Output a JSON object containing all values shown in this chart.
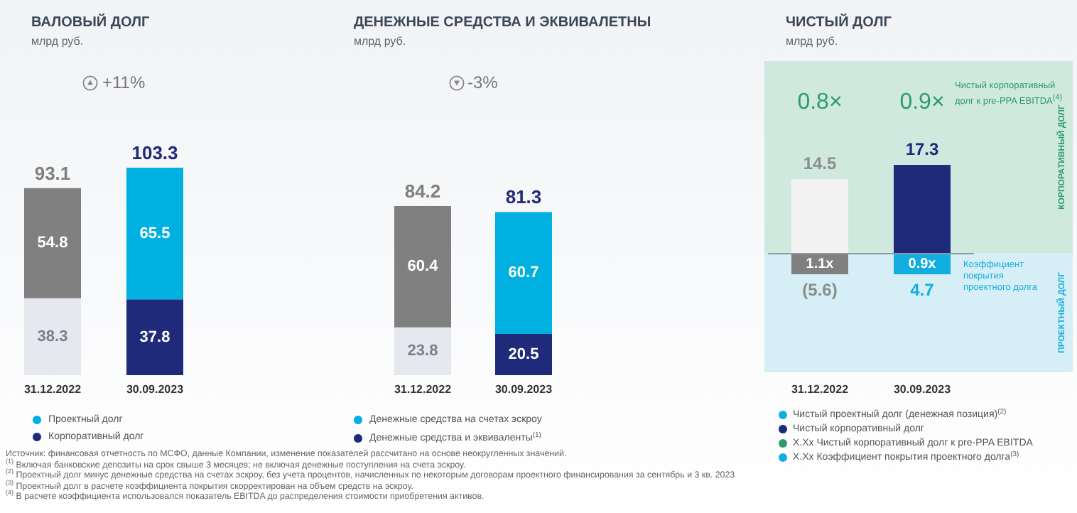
{
  "chart_data": [
    {
      "type": "bar",
      "title": "ВАЛОВЫЙ ДОЛГ",
      "subtitle": "млрд руб.",
      "categories": [
        "31.12.2022",
        "30.09.2023"
      ],
      "stacked": true,
      "data_labels": true,
      "totals": [
        "93.1",
        "103.3"
      ],
      "legend": "bottom left",
      "series": [
        {
          "name": "Корпоративный долг",
          "color": "#1f2a7a",
          "colors": [
            "#e6e8f0",
            "#1f2a7a"
          ],
          "values": [
            38.3,
            37.8
          ]
        },
        {
          "name": "Проектный долг",
          "color": "#00b0e0",
          "colors": [
            "#808080",
            "#00b0e0"
          ],
          "values": [
            54.8,
            65.5
          ]
        }
      ],
      "annotations": [
        "+11%",
        "Источник: финансовая отчетность по МСФО, данные Компании, изменение показателей рассчитано на основе неокругленных значений.",
        "$^{(1)}$ Включая банковские депозиты на срок свыше 3 месяцев; не включая денежные поступления на счета эскроу.",
        "$^{(2)}$ Проектный долг минус денежные средства на счетах эскроу, без учета процентов, начисленных по некоторым договорам проектного финансирования за сентябрь и 3 кв. 2023",
        "$^{(3)}$ Проектный долг в расчете коэффициента покрытия скорректирован на объем средств на эскроу.",
        "$^{(4)}$ В расчете коэффициента использовался показатель EBITDA до распределения стоимости приобретения активов."
      ]
    },
    {
      "type": "bar",
      "title": "ДЕНЕЖНЫЕ СРЕДСТВА И ЭКВИВАЛЕТНЫ",
      "subtitle": "млрд руб.",
      "categories": [
        "31.12.2022",
        "30.09.2023"
      ],
      "stacked": true,
      "data_labels": true,
      "totals": [
        "84.2",
        "81.3"
      ],
      "legend": "bottom left",
      "series": [
        {
          "name": "Денежные средства и эквиваленты$^{(1)}$",
          "color": "#1f2a7a",
          "colors": [
            "#e6e8f0",
            "#1f2a7a"
          ],
          "values": [
            23.8,
            20.5
          ]
        },
        {
          "name": "Денежные средства на счетах эскроу",
          "color": "#00b0e0",
          "colors": [
            "#808080",
            "#00b0e0"
          ],
          "values": [
            60.4,
            60.7
          ]
        }
      ],
      "annotations": [
        "-3%"
      ]
    },
    {
      "type": "bar",
      "title": "ЧИСТЫЙ ДОЛГ",
      "subtitle": "млрд руб.",
      "categories": [
        "31.12.2022",
        "30.09.2023"
      ],
      "data_labels": true,
      "legend": "bottom left",
      "series": [
        {
          "name": "Чистый корпоративный долг",
          "color": "#1f2a7a",
          "colors": [
            "#f2f2f2",
            "#1f2a7a"
          ],
          "values": [
            14.5,
            17.3
          ]
        }
      ],
      "annotations": [
        "0.8×",
        "0.9×",
        "Чистый корпоративный долг к pre-PPA EBITDA$^{(4)}$",
        "1.1x",
        "0.9x",
        "(5.6)",
        "4.7",
        "Коэффициент покрытия проектного долга",
        "КОРПОРАТИВНЫЙ ДОЛГ",
        "ПРОЕКТНЫЙ ДОЛГ",
        "Чистый проектный долг (денежная позиция)$^{(2)}$",
        "X.Xx Чистый корпоративный долг к pre-PPA EBITDA",
        "X.Xx Коэффициент покрытия проектного долга$^{(3)}$"
      ]
    }
  ]
}
